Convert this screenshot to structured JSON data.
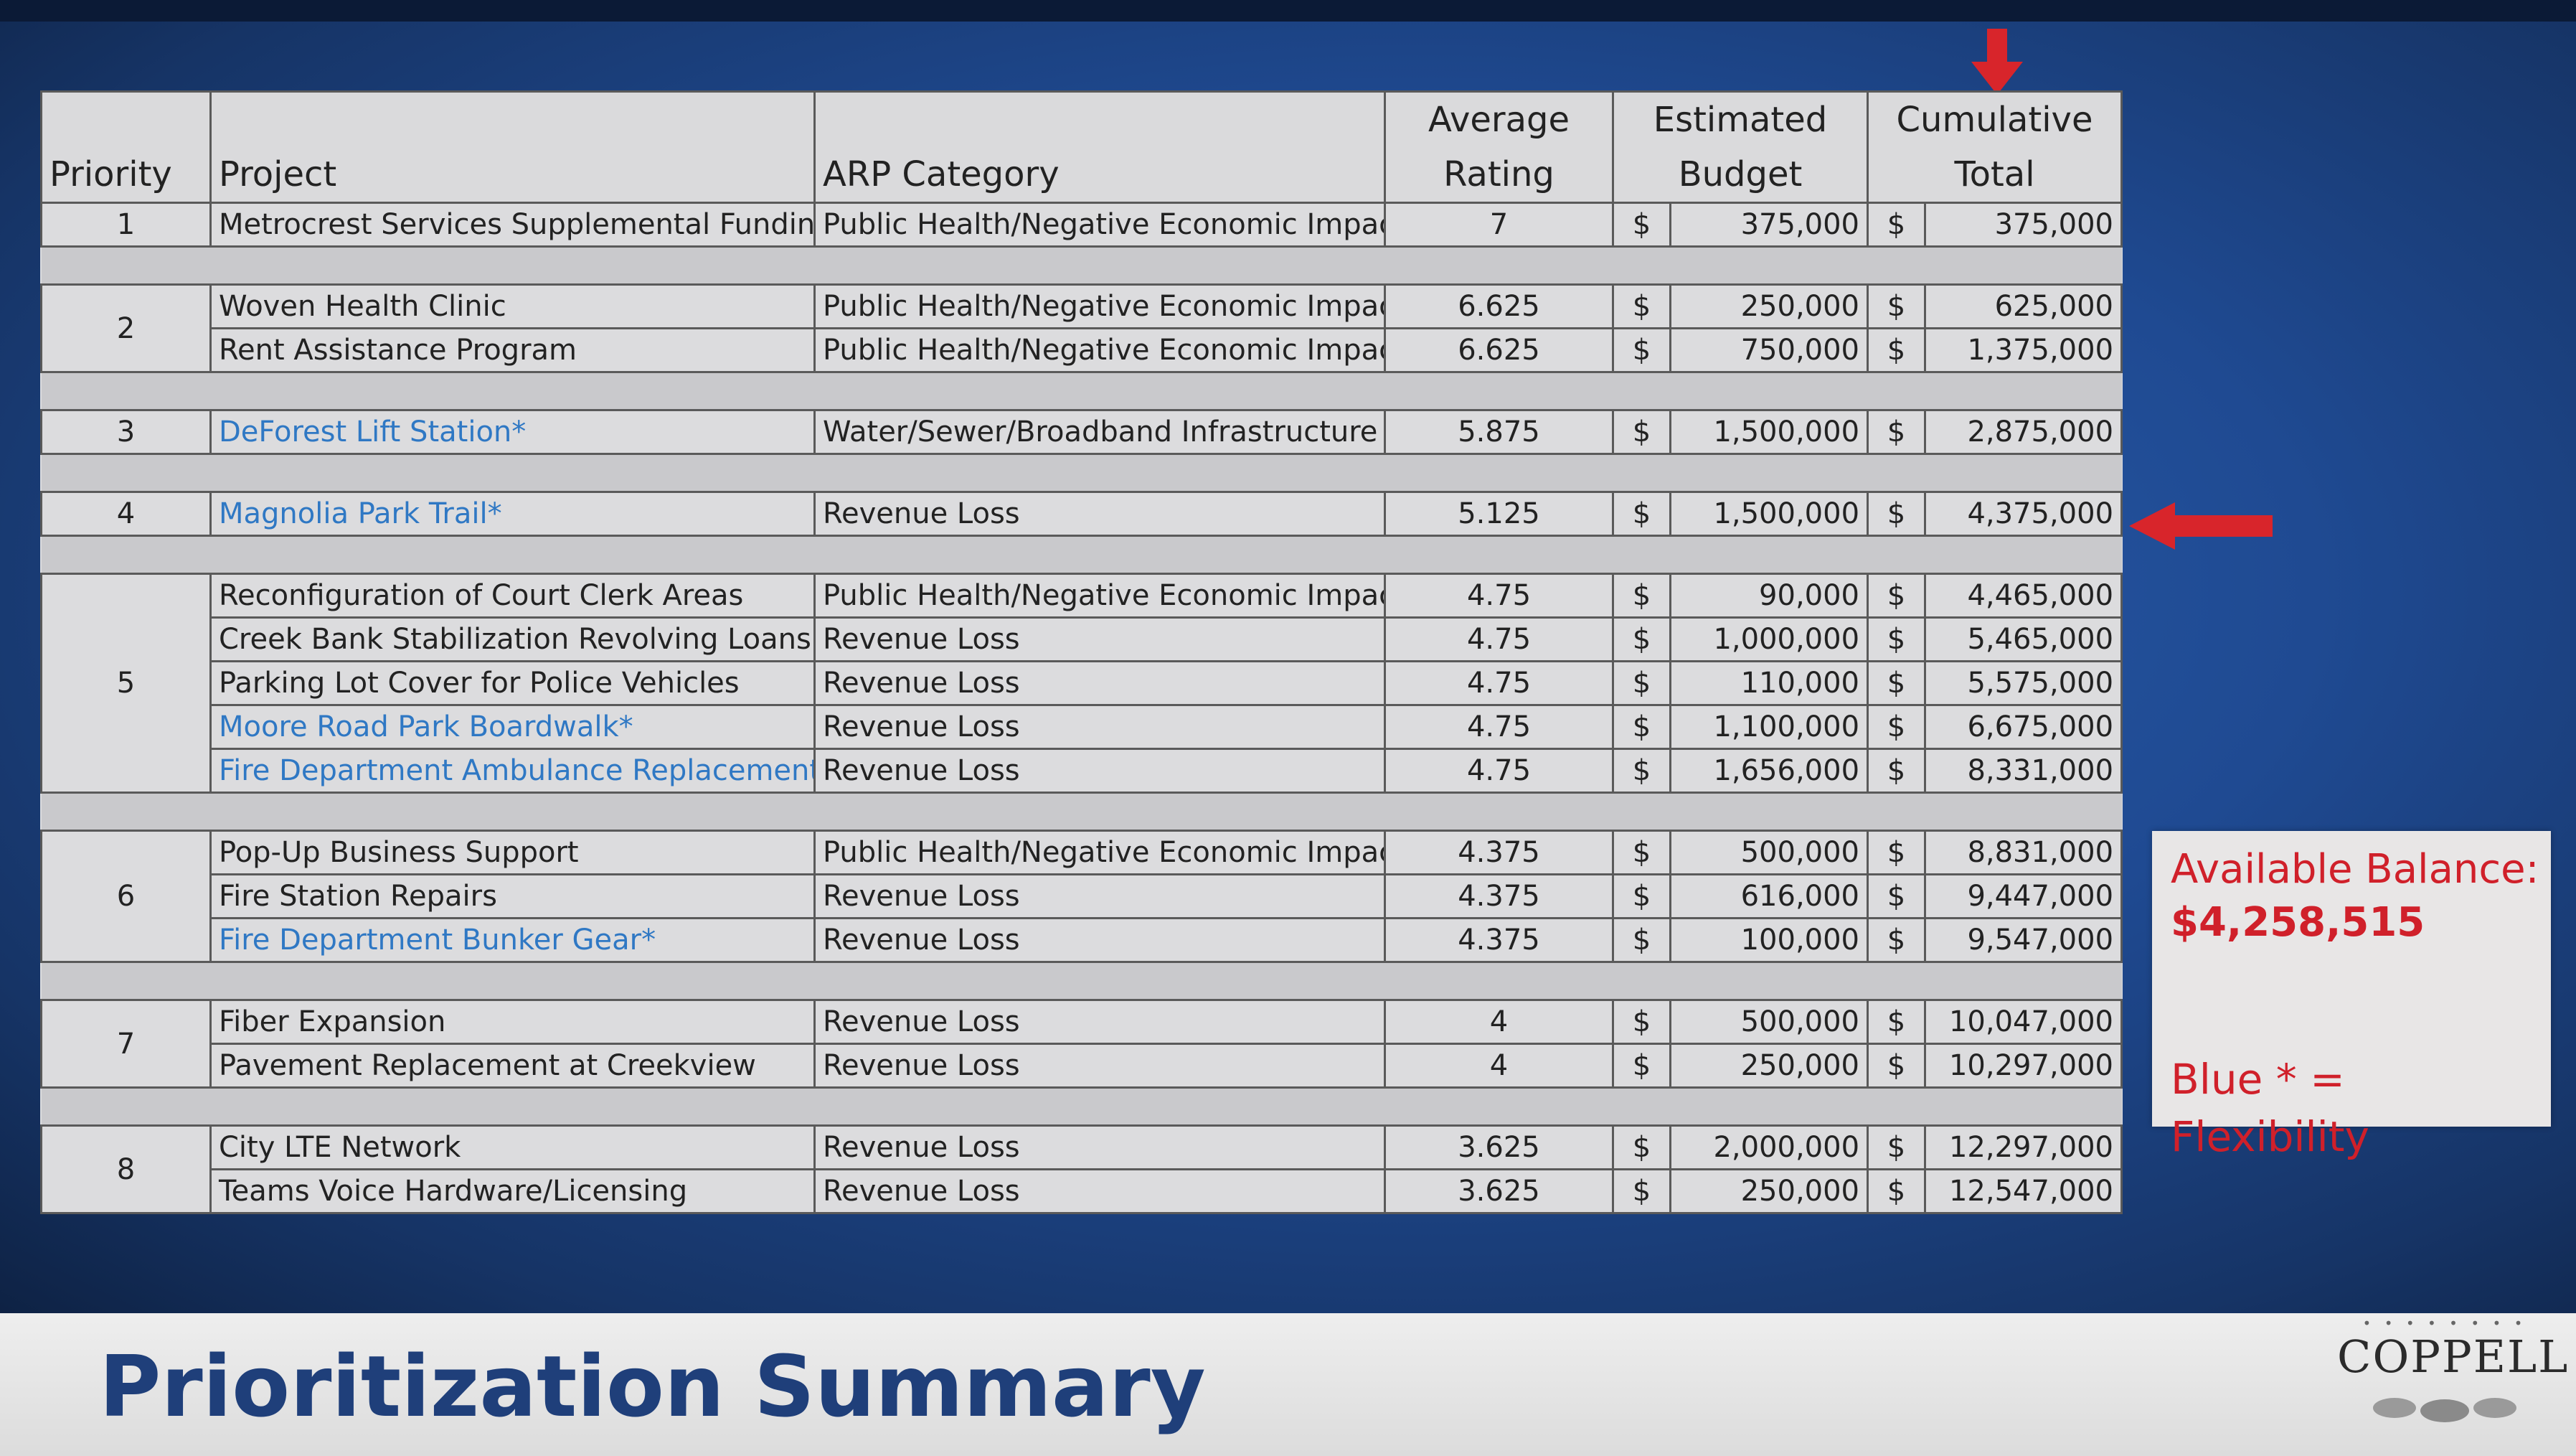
{
  "colors": {
    "accent_red": "#d0202a",
    "flex_blue": "#2f78c4",
    "title_navy": "#1f3f7a"
  },
  "table": {
    "headers": {
      "priority": "Priority",
      "project": "Project",
      "category": "ARP Category",
      "rating_l1": "Average",
      "rating_l2": "Rating",
      "budget_l1": "Estimated",
      "budget_l2": "Budget",
      "total_l1": "Cumulative",
      "total_l2": "Total"
    },
    "rows": [
      {
        "priority": "1",
        "project": "Metrocrest Services Supplemental Funding",
        "category": "Public Health/Negative Economic Impact",
        "rating": "7",
        "d1": "$",
        "budget": "375,000",
        "d2": "$",
        "total": "375,000"
      },
      {
        "priority": "2",
        "project": "Woven Health Clinic",
        "category": "Public Health/Negative Economic Impact",
        "rating": "6.625",
        "d1": "$",
        "budget": "250,000",
        "d2": "$",
        "total": "625,000"
      },
      {
        "project": "Rent Assistance Program",
        "category": "Public Health/Negative Economic Impact",
        "rating": "6.625",
        "d1": "$",
        "budget": "750,000",
        "d2": "$",
        "total": "1,375,000"
      },
      {
        "priority": "3",
        "project": "DeForest Lift Station*",
        "category": "Water/Sewer/Broadband Infrastructure",
        "rating": "5.875",
        "d1": "$",
        "budget": "1,500,000",
        "d2": "$",
        "total": "2,875,000"
      },
      {
        "priority": "4",
        "project": "Magnolia Park Trail*",
        "category": "Revenue Loss",
        "rating": "5.125",
        "d1": "$",
        "budget": "1,500,000",
        "d2": "$",
        "total": "4,375,000"
      },
      {
        "priority": "5",
        "project": "Reconfiguration of Court Clerk Areas",
        "category": "Public Health/Negative Economic Impact",
        "rating": "4.75",
        "d1": "$",
        "budget": "90,000",
        "d2": "$",
        "total": "4,465,000"
      },
      {
        "project": "Creek Bank Stabilization Revolving Loans",
        "category": "Revenue Loss",
        "rating": "4.75",
        "d1": "$",
        "budget": "1,000,000",
        "d2": "$",
        "total": "5,465,000"
      },
      {
        "project": "Parking Lot Cover for Police Vehicles",
        "category": "Revenue Loss",
        "rating": "4.75",
        "d1": "$",
        "budget": "110,000",
        "d2": "$",
        "total": "5,575,000"
      },
      {
        "project": "Moore Road Park Boardwalk*",
        "category": "Revenue Loss",
        "rating": "4.75",
        "d1": "$",
        "budget": "1,100,000",
        "d2": "$",
        "total": "6,675,000"
      },
      {
        "project": "Fire Department Ambulance Replacement*",
        "category": "Revenue Loss",
        "rating": "4.75",
        "d1": "$",
        "budget": "1,656,000",
        "d2": "$",
        "total": "8,331,000"
      },
      {
        "priority": "6",
        "project": "Pop-Up Business Support",
        "category": "Public Health/Negative Economic Impact",
        "rating": "4.375",
        "d1": "$",
        "budget": "500,000",
        "d2": "$",
        "total": "8,831,000"
      },
      {
        "project": "Fire Station Repairs",
        "category": "Revenue Loss",
        "rating": "4.375",
        "d1": "$",
        "budget": "616,000",
        "d2": "$",
        "total": "9,447,000"
      },
      {
        "project": "Fire Department Bunker Gear*",
        "category": "Revenue Loss",
        "rating": "4.375",
        "d1": "$",
        "budget": "100,000",
        "d2": "$",
        "total": "9,547,000"
      },
      {
        "priority": "7",
        "project": "Fiber Expansion",
        "category": "Revenue Loss",
        "rating": "4",
        "d1": "$",
        "budget": "500,000",
        "d2": "$",
        "total": "10,047,000"
      },
      {
        "project": "Pavement Replacement at Creekview",
        "category": "Revenue Loss",
        "rating": "4",
        "d1": "$",
        "budget": "250,000",
        "d2": "$",
        "total": "10,297,000"
      },
      {
        "priority": "8",
        "project": "City LTE Network",
        "category": "Revenue Loss",
        "rating": "3.625",
        "d1": "$",
        "budget": "2,000,000",
        "d2": "$",
        "total": "12,297,000"
      },
      {
        "project": "Teams Voice Hardware/Licensing",
        "category": "Revenue Loss",
        "rating": "3.625",
        "d1": "$",
        "budget": "250,000",
        "d2": "$",
        "total": "12,547,000"
      }
    ]
  },
  "note": {
    "title": "Available Balance:",
    "amount": "$4,258,515",
    "flex": "Blue * = Flexibility"
  },
  "slide_title": "Prioritization Summary",
  "logo": {
    "text": "COPPELL",
    "dots": "• • • • • • • •"
  }
}
